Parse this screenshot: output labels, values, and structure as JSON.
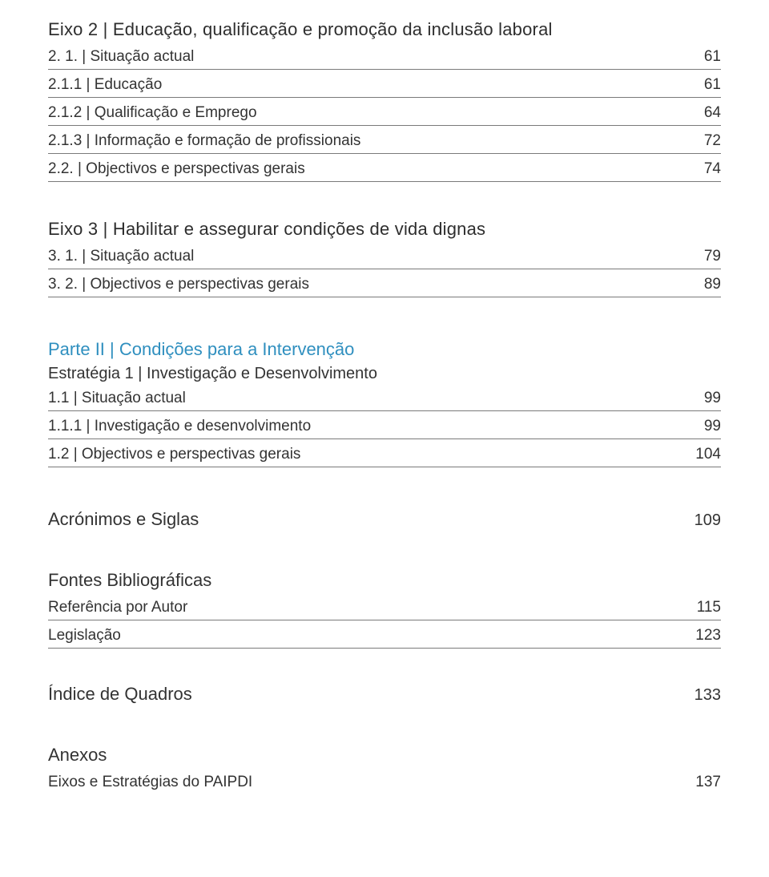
{
  "eixo2": {
    "heading": "Eixo 2 | Educação, qualificação e promoção da inclusão laboral",
    "items": [
      {
        "label": "2. 1. | Situação actual",
        "page": "61"
      },
      {
        "label": "2.1.1 | Educação",
        "page": "61"
      },
      {
        "label": "2.1.2 | Qualificação e Emprego",
        "page": "64"
      },
      {
        "label": "2.1.3 | Informação e formação de profissionais",
        "page": "72"
      },
      {
        "label": "2.2. | Objectivos e perspectivas gerais",
        "page": "74"
      }
    ]
  },
  "eixo3": {
    "heading": "Eixo 3 | Habilitar e assegurar condições de vida dignas",
    "items": [
      {
        "label": "3. 1. | Situação actual",
        "page": "79"
      },
      {
        "label": "3. 2. | Objectivos e perspectivas gerais",
        "page": "89"
      }
    ]
  },
  "parte2": {
    "heading": "Parte II | Condições para a Intervenção",
    "subheading": "Estratégia 1 | Investigação e Desenvolvimento",
    "items": [
      {
        "label": "1.1 | Situação actual",
        "page": "99"
      },
      {
        "label": "1.1.1 | Investigação e desenvolvimento",
        "page": "99"
      },
      {
        "label": "1.2 | Objectivos e perspectivas gerais",
        "page": "104"
      }
    ]
  },
  "acronimos": {
    "label": "Acrónimos e Siglas",
    "page": "109"
  },
  "fontes": {
    "heading": "Fontes Bibliográficas",
    "items": [
      {
        "label": "Referência por Autor",
        "page": "115"
      },
      {
        "label": "Legislação",
        "page": "123"
      }
    ]
  },
  "indice": {
    "label": "Índice de Quadros",
    "page": "133"
  },
  "anexos": {
    "heading": "Anexos",
    "items": [
      {
        "label": "Eixos e Estratégias do PAIPDI",
        "page": "137"
      }
    ]
  },
  "colors": {
    "text": "#2e2e2e",
    "accent": "#2f8fbf",
    "rule": "#7a7a7a",
    "background": "#ffffff"
  },
  "typography": {
    "heading_fontsize": 22,
    "body_fontsize": 19,
    "font_family": "sans-serif"
  }
}
